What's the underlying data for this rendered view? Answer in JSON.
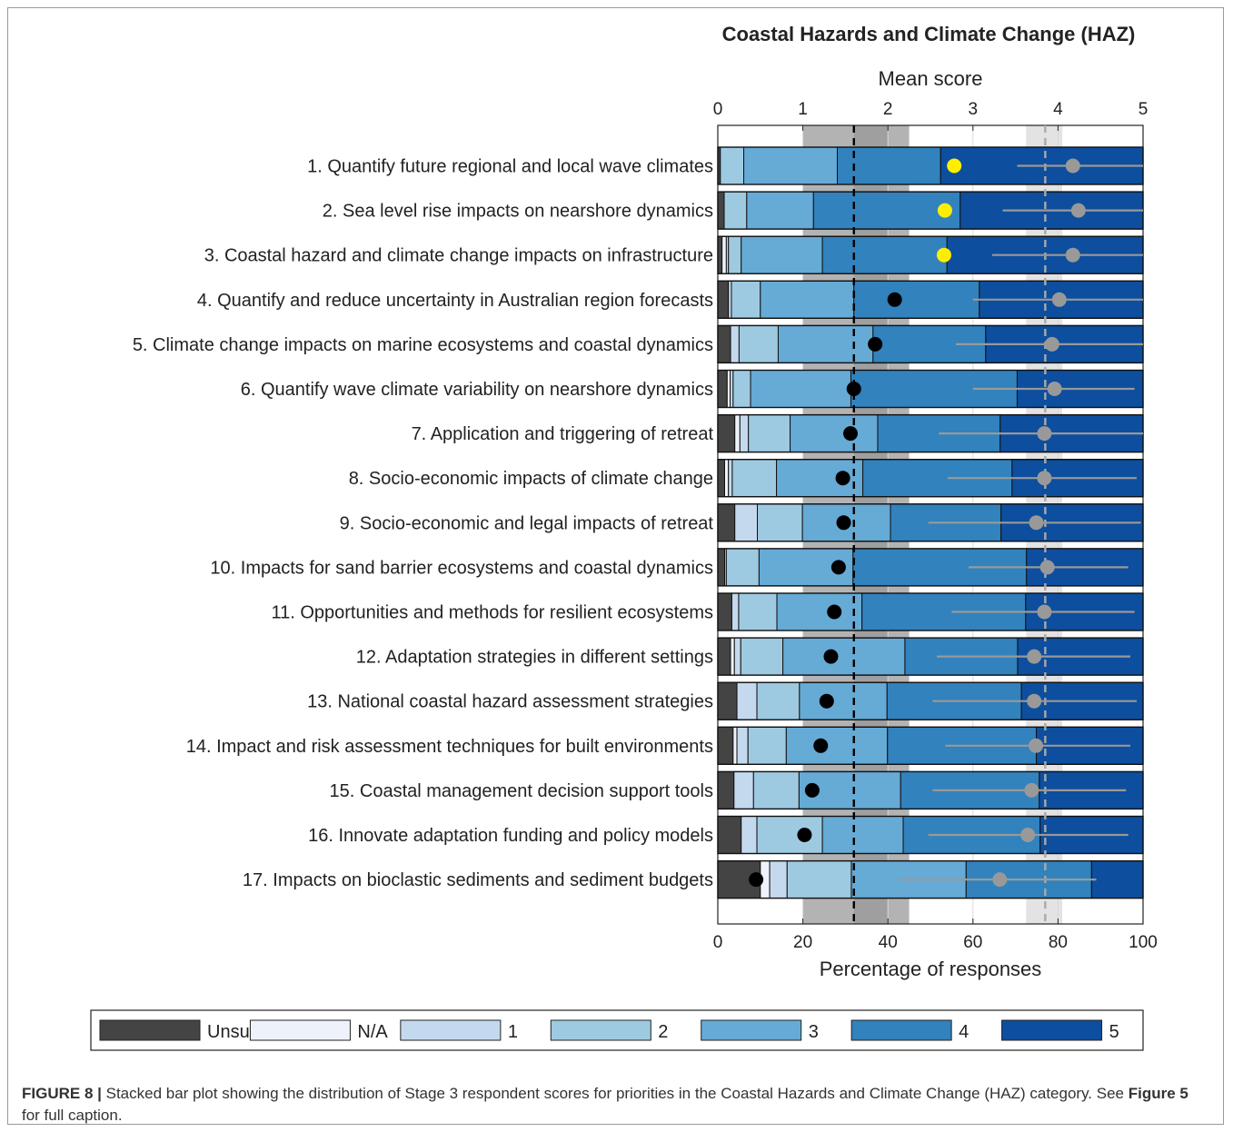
{
  "colors": {
    "unsure": "#444444",
    "na": "#eef3fb",
    "s1": "#c5d9ee",
    "s2": "#9ecae1",
    "s3": "#66aad6",
    "s4": "#3182bd",
    "s5": "#0d4e9e",
    "median_band": "#b3b3b3",
    "median_band_inner": "#9f9f9f",
    "mean_band": "#e3e3e3",
    "highlight_dot": "#ffee00",
    "mean_dot": "#000000",
    "error_bar": "#999999"
  },
  "chart_data": {
    "type": "bar",
    "orientation": "horizontal",
    "stacked": true,
    "title": "Coastal Hazards and Climate Change (HAZ)",
    "xlabel": "Percentage of responses",
    "x2label": "Mean score",
    "xlim": [
      0,
      100
    ],
    "x2lim": [
      0,
      5
    ],
    "xticks": [
      "0",
      "20",
      "40",
      "60",
      "80",
      "100"
    ],
    "x2ticks": [
      "0",
      "1",
      "2",
      "3",
      "4",
      "5"
    ],
    "categories": [
      "1. Quantify future regional and local wave climates",
      "2. Sea level rise impacts on nearshore dynamics",
      "3. Coastal hazard and climate change impacts on infrastructure",
      "4. Quantify and reduce uncertainty in Australian region forecasts",
      "5. Climate change impacts on marine ecosystems and coastal dynamics",
      "6. Quantify wave climate variability on nearshore dynamics",
      "7. Application and triggering of retreat",
      "8. Socio-economic impacts of climate change",
      "9. Socio-economic and legal impacts of retreat",
      "10. Impacts for sand barrier ecosystems and coastal dynamics",
      "11. Opportunities and methods for resilient ecosystems",
      "12. Adaptation strategies in different settings",
      "13. National coastal hazard assessment strategies",
      "14. Impact and risk assessment techniques for built environments",
      "15. Coastal management decision support tools",
      "16. Innovate adaptation funding and policy models",
      "17. Impacts on bioclastic sediments and sediment budgets"
    ],
    "series": [
      {
        "name": "Unsure",
        "color_key": "unsure",
        "values": [
          0.6,
          1.5,
          1.0,
          2.5,
          3.0,
          2.2,
          4.0,
          1.6,
          4.0,
          1.6,
          3.3,
          3.0,
          4.5,
          3.6,
          3.8,
          5.5,
          10.0
        ]
      },
      {
        "name": "N/A",
        "color_key": "na",
        "values": [
          0.0,
          0.0,
          1.0,
          0.0,
          0.0,
          0.7,
          1.2,
          0.9,
          0.0,
          0.0,
          0.0,
          0.9,
          0.0,
          0.9,
          0.0,
          0.0,
          2.2
        ]
      },
      {
        "name": "1",
        "color_key": "s1",
        "values": [
          0.0,
          0.0,
          0.5,
          0.7,
          2.0,
          0.7,
          2.0,
          0.9,
          5.3,
          0.4,
          1.6,
          1.5,
          4.7,
          2.6,
          4.6,
          3.7,
          4.1
        ]
      },
      {
        "name": "2",
        "color_key": "s2",
        "values": [
          5.5,
          5.3,
          3.0,
          6.8,
          9.2,
          4.1,
          9.8,
          10.4,
          10.6,
          7.7,
          9.0,
          9.9,
          10.0,
          9.0,
          10.7,
          15.4,
          15.1
        ]
      },
      {
        "name": "3",
        "color_key": "s3",
        "values": [
          22.0,
          15.7,
          19.1,
          22.0,
          22.3,
          23.6,
          20.6,
          20.3,
          20.7,
          22.1,
          20.0,
          28.7,
          20.6,
          23.8,
          23.9,
          19.0,
          27.0
        ]
      },
      {
        "name": "4",
        "color_key": "s4",
        "values": [
          24.3,
          34.5,
          29.3,
          29.5,
          26.5,
          39.1,
          28.8,
          35.1,
          26.0,
          40.8,
          38.5,
          26.5,
          31.6,
          35.0,
          32.6,
          32.2,
          29.5
        ]
      },
      {
        "name": "5",
        "color_key": "s5",
        "values": [
          47.6,
          43.0,
          46.1,
          38.5,
          37.0,
          29.6,
          33.6,
          30.8,
          33.4,
          27.4,
          27.6,
          29.5,
          28.6,
          25.1,
          24.4,
          24.2,
          12.1
        ]
      }
    ],
    "mean_score": [
      2.78,
      2.67,
      2.66,
      2.08,
      1.85,
      1.6,
      1.56,
      1.47,
      1.48,
      1.42,
      1.37,
      1.33,
      1.28,
      1.21,
      1.11,
      1.02,
      0.45
    ],
    "mean_highlighted": [
      true,
      true,
      true,
      false,
      false,
      false,
      false,
      false,
      false,
      false,
      false,
      false,
      false,
      false,
      false,
      false,
      false
    ],
    "mean_percent": [
      83.5,
      84.8,
      83.5,
      80.3,
      78.6,
      79.2,
      76.8,
      76.8,
      74.9,
      77.5,
      76.8,
      74.4,
      74.4,
      74.8,
      73.8,
      72.9,
      66.3
    ],
    "mean_percent_err_low": [
      70.4,
      67.0,
      64.5,
      60.0,
      56.0,
      60.0,
      52.0,
      54.0,
      49.5,
      59.0,
      55.0,
      51.5,
      50.5,
      53.5,
      50.5,
      49.5,
      42.5
    ],
    "mean_percent_err_high": [
      100.0,
      100.0,
      100.0,
      100.0,
      100.0,
      98.0,
      100.0,
      98.5,
      99.5,
      96.5,
      98.0,
      97.0,
      98.5,
      97.0,
      96.0,
      96.5,
      89.0
    ],
    "median_band_score": [
      1.0,
      2.25
    ],
    "median_band_inner_score": [
      1.6,
      2.0
    ],
    "median_line_score": 1.6,
    "mean_band_percent": [
      72.5,
      81.0
    ],
    "mean_line_percent": 77.0,
    "legend_position": "bottom",
    "grid": true
  },
  "caption": {
    "label": "FIGURE 8 |",
    "text": " Stacked bar plot showing the distribution of Stage 3 respondent scores for priorities in the Coastal Hazards and Climate Change (HAZ) category. See ",
    "ref": "Figure 5",
    "tail": " for full caption."
  }
}
